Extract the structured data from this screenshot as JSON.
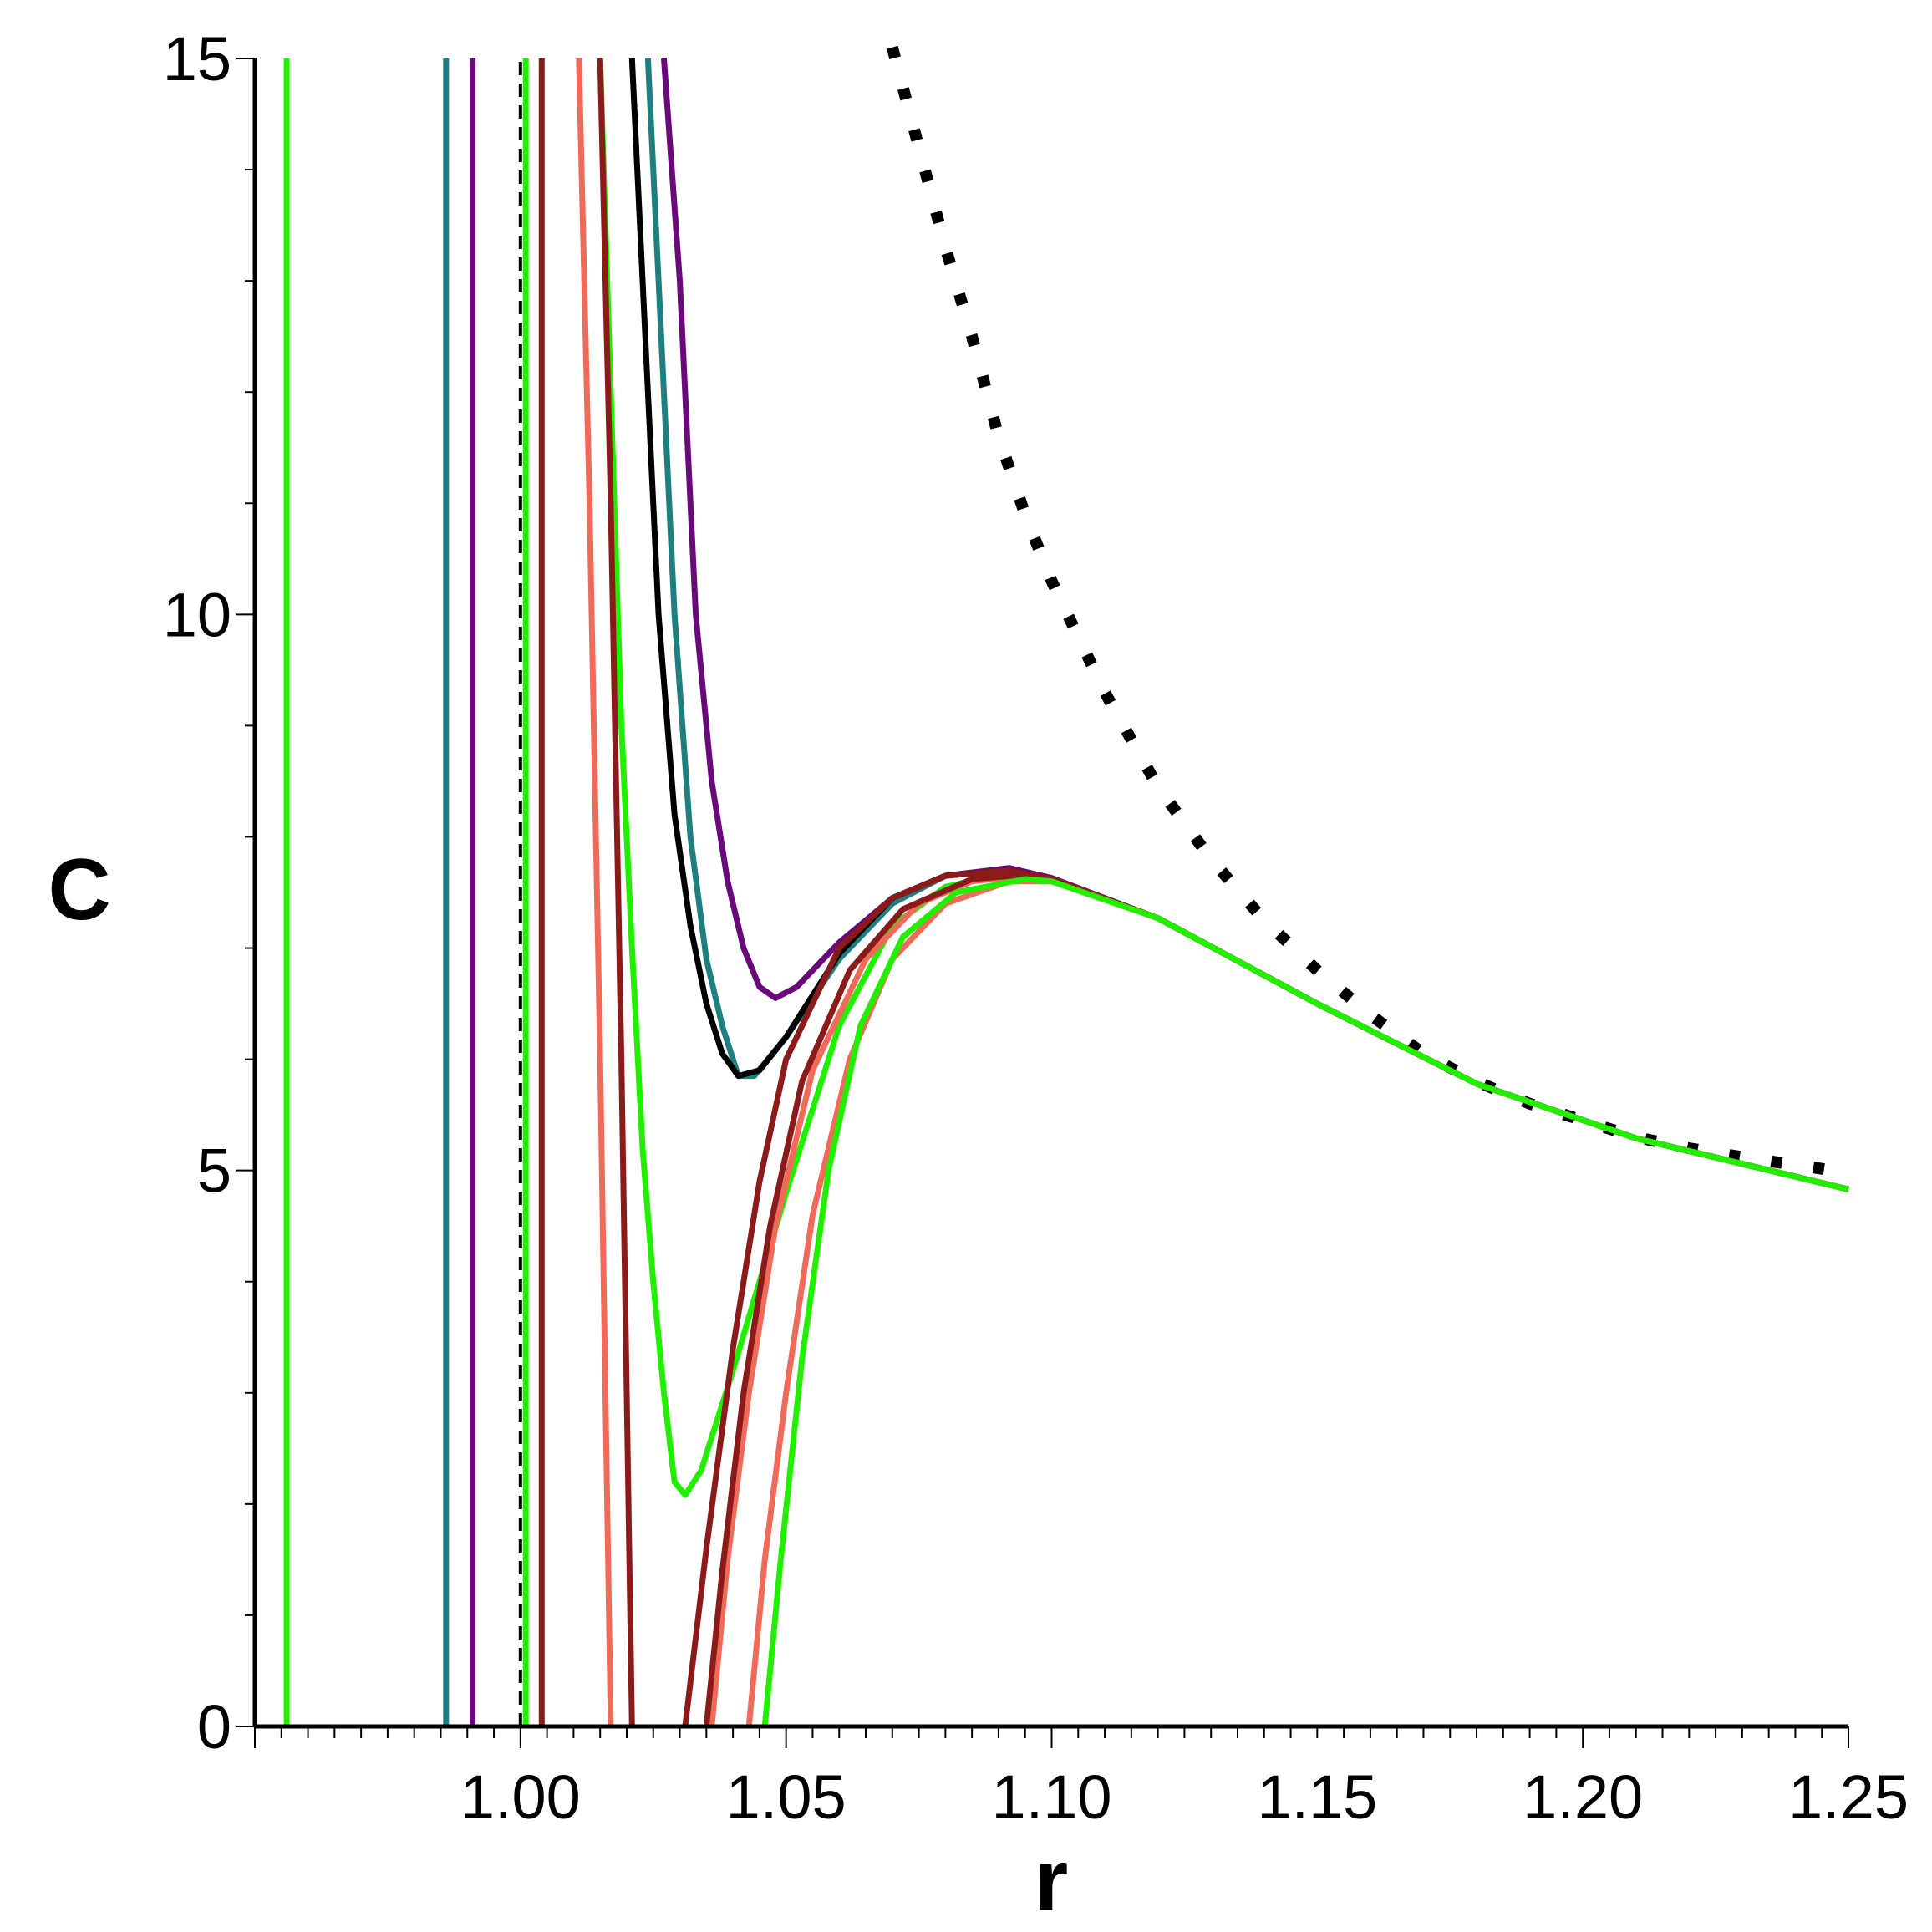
{
  "chart_data": {
    "type": "line",
    "title": "",
    "xlabel": "r",
    "ylabel": "C",
    "xlim": [
      0.95,
      1.25
    ],
    "ylim": [
      0,
      15
    ],
    "xticks": [
      {
        "v": 1.0,
        "label": "1.00"
      },
      {
        "v": 1.05,
        "label": "1.05"
      },
      {
        "v": 1.1,
        "label": "1.10"
      },
      {
        "v": 1.15,
        "label": "1.15"
      },
      {
        "v": 1.2,
        "label": "1.20"
      },
      {
        "v": 1.25,
        "label": "1.25"
      }
    ],
    "yticks": [
      {
        "v": 0,
        "label": "0"
      },
      {
        "v": 5,
        "label": "5"
      },
      {
        "v": 10,
        "label": "10"
      },
      {
        "v": 15,
        "label": "15"
      }
    ],
    "series": [
      {
        "name": "dotted-reference",
        "color": "#000000",
        "style": "dotted",
        "points": [
          [
            1.07,
            15.1
          ],
          [
            1.075,
            14.2
          ],
          [
            1.08,
            13.3
          ],
          [
            1.085,
            12.5
          ],
          [
            1.09,
            11.6
          ],
          [
            1.095,
            10.9
          ],
          [
            1.1,
            10.3
          ],
          [
            1.11,
            9.3
          ],
          [
            1.12,
            8.45
          ],
          [
            1.13,
            7.8
          ],
          [
            1.14,
            7.25
          ],
          [
            1.15,
            6.8
          ],
          [
            1.16,
            6.4
          ],
          [
            1.17,
            6.05
          ],
          [
            1.18,
            5.8
          ],
          [
            1.19,
            5.6
          ],
          [
            1.2,
            5.45
          ],
          [
            1.21,
            5.3
          ],
          [
            1.22,
            5.2
          ],
          [
            1.23,
            5.12
          ],
          [
            1.24,
            5.05
          ],
          [
            1.25,
            4.98
          ]
        ]
      },
      {
        "name": "dashed-asymptote",
        "color": "#000000",
        "style": "dashed",
        "points": [
          [
            1.0,
            0
          ],
          [
            1.0,
            15
          ]
        ]
      },
      {
        "name": "green-vertical-left",
        "color": "#22ee00",
        "style": "solid",
        "points": [
          [
            0.956,
            0
          ],
          [
            0.956,
            15
          ]
        ]
      },
      {
        "name": "teal",
        "color": "#1f7f7f",
        "style": "solid",
        "points": [
          [
            0.986,
            0
          ],
          [
            0.986,
            15
          ]
        ],
        "points2": [
          [
            1.024,
            15
          ],
          [
            1.026,
            13
          ],
          [
            1.029,
            10
          ],
          [
            1.032,
            8
          ],
          [
            1.035,
            6.9
          ],
          [
            1.038,
            6.3
          ],
          [
            1.041,
            5.85
          ],
          [
            1.044,
            5.85
          ],
          [
            1.05,
            6.2
          ],
          [
            1.06,
            6.9
          ],
          [
            1.07,
            7.4
          ],
          [
            1.08,
            7.65
          ],
          [
            1.092,
            7.7
          ],
          [
            1.1,
            7.62
          ],
          [
            1.12,
            7.27
          ],
          [
            1.15,
            6.5
          ],
          [
            1.18,
            5.78
          ],
          [
            1.21,
            5.29
          ],
          [
            1.25,
            4.83
          ]
        ]
      },
      {
        "name": "purple",
        "color": "#6a0a7a",
        "style": "solid",
        "points": [
          [
            0.991,
            0
          ],
          [
            0.991,
            15
          ]
        ],
        "points2": [
          [
            1.027,
            15
          ],
          [
            1.03,
            13
          ],
          [
            1.033,
            10
          ],
          [
            1.036,
            8.5
          ],
          [
            1.039,
            7.6
          ],
          [
            1.042,
            7.0
          ],
          [
            1.045,
            6.65
          ],
          [
            1.048,
            6.55
          ],
          [
            1.052,
            6.65
          ],
          [
            1.06,
            7.05
          ],
          [
            1.07,
            7.45
          ],
          [
            1.08,
            7.65
          ],
          [
            1.092,
            7.72
          ],
          [
            1.1,
            7.63
          ],
          [
            1.12,
            7.27
          ],
          [
            1.15,
            6.5
          ],
          [
            1.18,
            5.78
          ],
          [
            1.21,
            5.29
          ],
          [
            1.25,
            4.83
          ]
        ]
      },
      {
        "name": "black",
        "color": "#000000",
        "style": "solid",
        "points": [
          [
            1.021,
            15
          ],
          [
            1.023,
            13
          ],
          [
            1.026,
            10
          ],
          [
            1.029,
            8.2
          ],
          [
            1.032,
            7.2
          ],
          [
            1.035,
            6.5
          ],
          [
            1.038,
            6.05
          ],
          [
            1.041,
            5.85
          ],
          [
            1.045,
            5.9
          ],
          [
            1.05,
            6.2
          ],
          [
            1.06,
            6.95
          ],
          [
            1.07,
            7.45
          ],
          [
            1.08,
            7.65
          ],
          [
            1.092,
            7.7
          ],
          [
            1.1,
            7.62
          ],
          [
            1.12,
            7.27
          ],
          [
            1.15,
            6.5
          ],
          [
            1.18,
            5.78
          ],
          [
            1.21,
            5.29
          ],
          [
            1.25,
            4.83
          ]
        ]
      },
      {
        "name": "green-inner",
        "color": "#22ee00",
        "style": "solid",
        "points": [
          [
            1.001,
            0
          ],
          [
            1.001,
            15
          ]
        ],
        "points2": [
          [
            1.015,
            15
          ],
          [
            1.017,
            12
          ],
          [
            1.019,
            9
          ],
          [
            1.021,
            7
          ],
          [
            1.023,
            5.2
          ],
          [
            1.025,
            4.0
          ],
          [
            1.027,
            3.0
          ],
          [
            1.029,
            2.2
          ],
          [
            1.031,
            2.08
          ],
          [
            1.034,
            2.3
          ],
          [
            1.04,
            3.2
          ],
          [
            1.05,
            4.8
          ],
          [
            1.06,
            6.3
          ],
          [
            1.07,
            7.2
          ],
          [
            1.08,
            7.55
          ],
          [
            1.092,
            7.68
          ],
          [
            1.1,
            7.62
          ],
          [
            1.12,
            7.27
          ],
          [
            1.15,
            6.5
          ],
          [
            1.18,
            5.78
          ],
          [
            1.21,
            5.29
          ],
          [
            1.25,
            4.83
          ]
        ]
      },
      {
        "name": "salmon",
        "color": "#f06a5a",
        "style": "solid",
        "points": [
          [
            1.011,
            15
          ],
          [
            1.013,
            11
          ],
          [
            1.015,
            6
          ],
          [
            1.016,
            3
          ],
          [
            1.017,
            0
          ]
        ],
        "points2": [
          [
            1.036,
            0
          ],
          [
            1.039,
            1.5
          ],
          [
            1.043,
            3.0
          ],
          [
            1.048,
            4.5
          ],
          [
            1.055,
            5.9
          ],
          [
            1.065,
            6.9
          ],
          [
            1.075,
            7.4
          ],
          [
            1.085,
            7.6
          ],
          [
            1.095,
            7.65
          ],
          [
            1.1,
            7.62
          ],
          [
            1.12,
            7.27
          ],
          [
            1.15,
            6.5
          ],
          [
            1.18,
            5.78
          ],
          [
            1.21,
            5.29
          ],
          [
            1.25,
            4.83
          ]
        ]
      },
      {
        "name": "salmon-2",
        "color": "#f06a5a",
        "style": "solid",
        "points": [
          [
            1.043,
            0
          ],
          [
            1.046,
            1.5
          ],
          [
            1.05,
            3.0
          ],
          [
            1.055,
            4.6
          ],
          [
            1.062,
            6.0
          ],
          [
            1.07,
            6.9
          ],
          [
            1.08,
            7.4
          ],
          [
            1.092,
            7.6
          ],
          [
            1.1,
            7.6
          ],
          [
            1.12,
            7.27
          ],
          [
            1.15,
            6.5
          ],
          [
            1.18,
            5.78
          ],
          [
            1.21,
            5.29
          ],
          [
            1.25,
            4.83
          ]
        ]
      },
      {
        "name": "dark-red",
        "color": "#8b1a1a",
        "style": "solid",
        "points": [
          [
            1.004,
            0
          ],
          [
            1.004,
            15
          ]
        ],
        "points2": [
          [
            1.015,
            15
          ],
          [
            1.017,
            11
          ],
          [
            1.019,
            6
          ],
          [
            1.02,
            3
          ],
          [
            1.021,
            0
          ]
        ],
        "points3": [
          [
            1.031,
            0
          ],
          [
            1.035,
            1.6
          ],
          [
            1.04,
            3.4
          ],
          [
            1.045,
            4.9
          ],
          [
            1.05,
            6.0
          ],
          [
            1.06,
            7.0
          ],
          [
            1.07,
            7.45
          ],
          [
            1.08,
            7.65
          ],
          [
            1.092,
            7.7
          ],
          [
            1.1,
            7.62
          ],
          [
            1.12,
            7.27
          ],
          [
            1.15,
            6.5
          ],
          [
            1.18,
            5.78
          ],
          [
            1.21,
            5.29
          ],
          [
            1.25,
            4.83
          ]
        ]
      },
      {
        "name": "dark-red-2",
        "color": "#8b1a1a",
        "style": "solid",
        "points": [
          [
            1.035,
            0
          ],
          [
            1.038,
            1.4
          ],
          [
            1.042,
            3.0
          ],
          [
            1.047,
            4.5
          ],
          [
            1.053,
            5.8
          ],
          [
            1.062,
            6.8
          ],
          [
            1.072,
            7.35
          ],
          [
            1.085,
            7.62
          ],
          [
            1.095,
            7.66
          ],
          [
            1.1,
            7.62
          ],
          [
            1.12,
            7.27
          ],
          [
            1.15,
            6.5
          ],
          [
            1.18,
            5.78
          ],
          [
            1.21,
            5.29
          ],
          [
            1.25,
            4.83
          ]
        ]
      },
      {
        "name": "green-outer",
        "color": "#22ee00",
        "style": "solid",
        "points": [
          [
            1.046,
            0
          ],
          [
            1.049,
            1.5
          ],
          [
            1.053,
            3.3
          ],
          [
            1.058,
            5.0
          ],
          [
            1.064,
            6.3
          ],
          [
            1.072,
            7.1
          ],
          [
            1.082,
            7.5
          ],
          [
            1.095,
            7.62
          ],
          [
            1.1,
            7.6
          ],
          [
            1.12,
            7.27
          ],
          [
            1.15,
            6.5
          ],
          [
            1.18,
            5.78
          ],
          [
            1.21,
            5.29
          ],
          [
            1.25,
            4.83
          ]
        ]
      }
    ]
  }
}
